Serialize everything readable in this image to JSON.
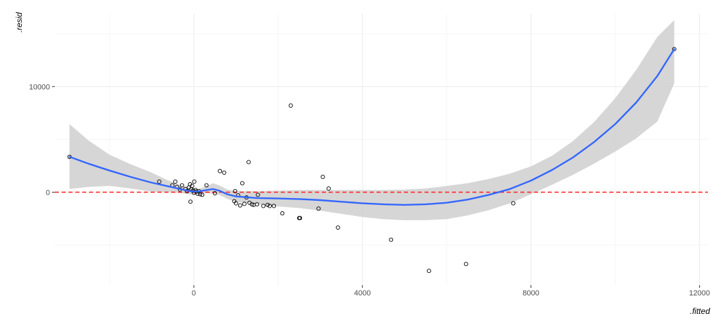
{
  "chart_data": {
    "type": "scatter",
    "title": "",
    "xlabel": ".fitted",
    "ylabel": ".resid",
    "xlim": [
      -3300,
      12200
    ],
    "ylim": [
      -8800,
      16900
    ],
    "x_ticks": [
      0,
      4000,
      8000,
      12000
    ],
    "x_tick_labels": [
      "0",
      "4000",
      "8000",
      "12000"
    ],
    "y_ticks": [
      0,
      10000
    ],
    "y_tick_labels": [
      "0",
      "10000"
    ],
    "x_minor_ticks": [
      -2000,
      2000,
      6000,
      10000
    ],
    "y_minor_ticks": [
      -5000,
      5000,
      15000
    ],
    "grid": true,
    "reference_line": {
      "y": 0,
      "style": "dashed",
      "color": "#ff2a2a"
    },
    "colors": {
      "points_stroke": "#000000",
      "smooth_line": "#3366ff",
      "confidence_band": "#cfcfcf",
      "grid_major": "#ebebeb",
      "grid_minor": "#f5f5f5"
    },
    "points": [
      {
        "x": -2950,
        "y": 3350
      },
      {
        "x": -820,
        "y": 1000
      },
      {
        "x": -510,
        "y": 650
      },
      {
        "x": -440,
        "y": 1000
      },
      {
        "x": -400,
        "y": 500
      },
      {
        "x": -330,
        "y": 250
      },
      {
        "x": -280,
        "y": 650
      },
      {
        "x": -200,
        "y": 300
      },
      {
        "x": -160,
        "y": 100
      },
      {
        "x": -120,
        "y": 450
      },
      {
        "x": -90,
        "y": 750
      },
      {
        "x": -80,
        "y": -900
      },
      {
        "x": -60,
        "y": 300
      },
      {
        "x": -40,
        "y": 600
      },
      {
        "x": -20,
        "y": 150
      },
      {
        "x": 0,
        "y": -50
      },
      {
        "x": 10,
        "y": 1000
      },
      {
        "x": 40,
        "y": 200
      },
      {
        "x": 60,
        "y": 50
      },
      {
        "x": 90,
        "y": -150
      },
      {
        "x": 120,
        "y": 100
      },
      {
        "x": 150,
        "y": -200
      },
      {
        "x": 200,
        "y": -250
      },
      {
        "x": 300,
        "y": 650
      },
      {
        "x": 500,
        "y": -100
      },
      {
        "x": 620,
        "y": 2000
      },
      {
        "x": 720,
        "y": 1850
      },
      {
        "x": 960,
        "y": -850
      },
      {
        "x": 980,
        "y": 100
      },
      {
        "x": 1000,
        "y": -1050
      },
      {
        "x": 1050,
        "y": -300
      },
      {
        "x": 1100,
        "y": -1250
      },
      {
        "x": 1150,
        "y": 850
      },
      {
        "x": 1200,
        "y": -1100
      },
      {
        "x": 1250,
        "y": -500
      },
      {
        "x": 1300,
        "y": 2850
      },
      {
        "x": 1320,
        "y": -1000
      },
      {
        "x": 1380,
        "y": -1150
      },
      {
        "x": 1420,
        "y": -1200
      },
      {
        "x": 1500,
        "y": -1150
      },
      {
        "x": 1520,
        "y": -250
      },
      {
        "x": 1650,
        "y": -1300
      },
      {
        "x": 1750,
        "y": -1200
      },
      {
        "x": 1800,
        "y": -1300
      },
      {
        "x": 1900,
        "y": -1300
      },
      {
        "x": 2100,
        "y": -2000
      },
      {
        "x": 2300,
        "y": 8200
      },
      {
        "x": 2500,
        "y": -2450
      },
      {
        "x": 2520,
        "y": -2450
      },
      {
        "x": 2960,
        "y": -1550
      },
      {
        "x": 3060,
        "y": 1450
      },
      {
        "x": 3200,
        "y": 350
      },
      {
        "x": 3420,
        "y": -3350
      },
      {
        "x": 4680,
        "y": -4500
      },
      {
        "x": 5580,
        "y": -7450
      },
      {
        "x": 6460,
        "y": -6800
      },
      {
        "x": 7580,
        "y": -1050
      },
      {
        "x": 11400,
        "y": 13550
      }
    ],
    "smooth_fit": [
      {
        "x": -2950,
        "y": 3350
      },
      {
        "x": -2500,
        "y": 2700
      },
      {
        "x": -2000,
        "y": 2050
      },
      {
        "x": -1500,
        "y": 1450
      },
      {
        "x": -1000,
        "y": 900
      },
      {
        "x": -600,
        "y": 550
      },
      {
        "x": -300,
        "y": 280
      },
      {
        "x": -100,
        "y": 100
      },
      {
        "x": 100,
        "y": 50
      },
      {
        "x": 300,
        "y": 200
      },
      {
        "x": 450,
        "y": 300
      },
      {
        "x": 600,
        "y": 150
      },
      {
        "x": 800,
        "y": -200
      },
      {
        "x": 1000,
        "y": -400
      },
      {
        "x": 1500,
        "y": -550
      },
      {
        "x": 2000,
        "y": -600
      },
      {
        "x": 2500,
        "y": -650
      },
      {
        "x": 3000,
        "y": -750
      },
      {
        "x": 3500,
        "y": -900
      },
      {
        "x": 4000,
        "y": -1050
      },
      {
        "x": 4500,
        "y": -1150
      },
      {
        "x": 5000,
        "y": -1200
      },
      {
        "x": 5500,
        "y": -1150
      },
      {
        "x": 6000,
        "y": -1000
      },
      {
        "x": 6500,
        "y": -700
      },
      {
        "x": 7000,
        "y": -250
      },
      {
        "x": 7500,
        "y": 300
      },
      {
        "x": 8000,
        "y": 1100
      },
      {
        "x": 8500,
        "y": 2100
      },
      {
        "x": 9000,
        "y": 3300
      },
      {
        "x": 9500,
        "y": 4750
      },
      {
        "x": 10000,
        "y": 6450
      },
      {
        "x": 10500,
        "y": 8500
      },
      {
        "x": 11000,
        "y": 11000
      },
      {
        "x": 11400,
        "y": 13550
      }
    ],
    "confidence_band": [
      {
        "x": -2950,
        "lower": 300,
        "upper": 6450
      },
      {
        "x": -2500,
        "lower": 500,
        "upper": 4900
      },
      {
        "x": -2000,
        "lower": 600,
        "upper": 3550
      },
      {
        "x": -1500,
        "lower": 350,
        "upper": 2650
      },
      {
        "x": -1000,
        "lower": 50,
        "upper": 1850
      },
      {
        "x": -600,
        "lower": 0,
        "upper": 1100
      },
      {
        "x": -300,
        "lower": -100,
        "upper": 650
      },
      {
        "x": -100,
        "lower": -200,
        "upper": 400
      },
      {
        "x": 100,
        "lower": -150,
        "upper": 300
      },
      {
        "x": 300,
        "lower": -100,
        "upper": 550
      },
      {
        "x": 450,
        "lower": -150,
        "upper": 850
      },
      {
        "x": 600,
        "lower": -250,
        "upper": 650
      },
      {
        "x": 800,
        "lower": -650,
        "upper": 250
      },
      {
        "x": 1000,
        "lower": -900,
        "upper": 100
      },
      {
        "x": 1500,
        "lower": -1150,
        "upper": 100
      },
      {
        "x": 2000,
        "lower": -1350,
        "upper": 150
      },
      {
        "x": 2500,
        "lower": -1500,
        "upper": 200
      },
      {
        "x": 3000,
        "lower": -1750,
        "upper": 200
      },
      {
        "x": 3500,
        "lower": -2050,
        "upper": 200
      },
      {
        "x": 4000,
        "lower": -2350,
        "upper": 200
      },
      {
        "x": 4500,
        "lower": -2550,
        "upper": 200
      },
      {
        "x": 5000,
        "lower": -2650,
        "upper": 250
      },
      {
        "x": 5500,
        "lower": -2650,
        "upper": 350
      },
      {
        "x": 6000,
        "lower": -2550,
        "upper": 600
      },
      {
        "x": 6500,
        "lower": -2200,
        "upper": 850
      },
      {
        "x": 7000,
        "lower": -1700,
        "upper": 1250
      },
      {
        "x": 7500,
        "lower": -1050,
        "upper": 1750
      },
      {
        "x": 8000,
        "lower": -200,
        "upper": 2450
      },
      {
        "x": 8500,
        "lower": 700,
        "upper": 3450
      },
      {
        "x": 9000,
        "lower": 1650,
        "upper": 4850
      },
      {
        "x": 9500,
        "lower": 2700,
        "upper": 6650
      },
      {
        "x": 10000,
        "lower": 3850,
        "upper": 8900
      },
      {
        "x": 10500,
        "lower": 5100,
        "upper": 11600
      },
      {
        "x": 11000,
        "lower": 6700,
        "upper": 14700
      },
      {
        "x": 11400,
        "lower": 10300,
        "upper": 16300
      }
    ]
  }
}
